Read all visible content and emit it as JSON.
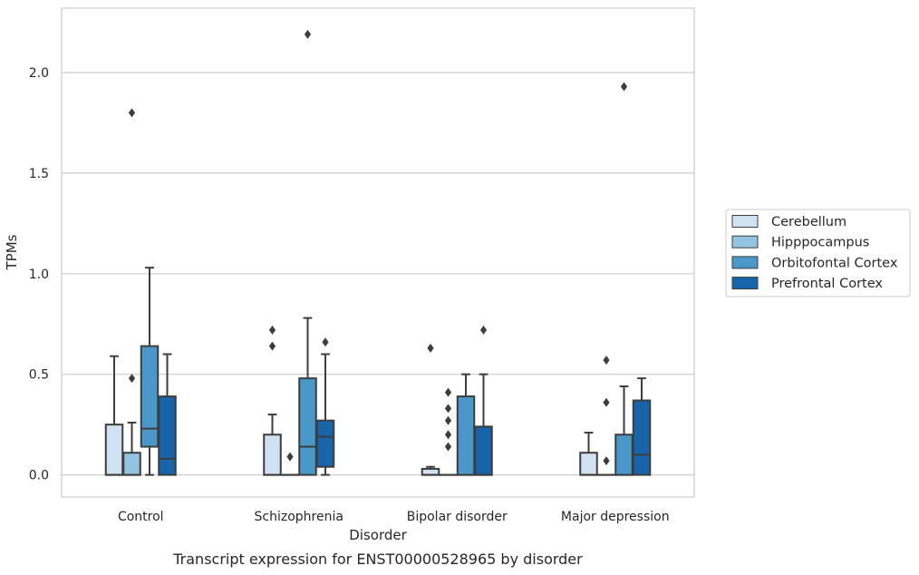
{
  "chart_data": {
    "type": "box",
    "title": "",
    "caption": "Transcript expression for ENST00000528965 by disorder",
    "xlabel": "Disorder",
    "ylabel": "TPMs",
    "ylim": [
      -0.11,
      2.32
    ],
    "yticks": [
      "0.0",
      "0.5",
      "1.0",
      "1.5",
      "2.0"
    ],
    "grid": "horizontal",
    "legend_position": "right",
    "categories": [
      "Control",
      "Schizophrenia",
      "Bipolar disorder",
      "Major depression"
    ],
    "series": [
      {
        "name": "Cerebellum",
        "color": "#d0e1f2",
        "boxes": [
          {
            "q1": 0.0,
            "median": 0.0,
            "q3": 0.25,
            "whisker_low": 0.0,
            "whisker_high": 0.59,
            "outliers": []
          },
          {
            "q1": 0.0,
            "median": 0.0,
            "q3": 0.2,
            "whisker_low": 0.0,
            "whisker_high": 0.3,
            "outliers": [
              0.64,
              0.72
            ]
          },
          {
            "q1": 0.0,
            "median": 0.0,
            "q3": 0.03,
            "whisker_low": 0.0,
            "whisker_high": 0.04,
            "outliers": [
              0.63
            ]
          },
          {
            "q1": 0.0,
            "median": 0.0,
            "q3": 0.11,
            "whisker_low": 0.0,
            "whisker_high": 0.21,
            "outliers": []
          }
        ]
      },
      {
        "name": "Hipppocampus",
        "color": "#94c4df",
        "boxes": [
          {
            "q1": 0.0,
            "median": 0.0,
            "q3": 0.11,
            "whisker_low": 0.0,
            "whisker_high": 0.26,
            "outliers": [
              0.48,
              1.8
            ]
          },
          {
            "q1": 0.0,
            "median": 0.0,
            "q3": 0.0,
            "whisker_low": 0.0,
            "whisker_high": 0.0,
            "outliers": [
              0.09
            ]
          },
          {
            "q1": 0.0,
            "median": 0.0,
            "q3": 0.0,
            "whisker_low": 0.0,
            "whisker_high": 0.0,
            "outliers": [
              0.14,
              0.2,
              0.27,
              0.33,
              0.41
            ]
          },
          {
            "q1": 0.0,
            "median": 0.0,
            "q3": 0.0,
            "whisker_low": 0.0,
            "whisker_high": 0.0,
            "outliers": [
              0.07,
              0.36,
              0.57
            ]
          }
        ]
      },
      {
        "name": "Orbitofontal Cortex",
        "color": "#4a98c9",
        "boxes": [
          {
            "q1": 0.14,
            "median": 0.23,
            "q3": 0.64,
            "whisker_low": 0.0,
            "whisker_high": 1.03,
            "outliers": []
          },
          {
            "q1": 0.0,
            "median": 0.14,
            "q3": 0.48,
            "whisker_low": 0.0,
            "whisker_high": 0.78,
            "outliers": [
              2.19
            ]
          },
          {
            "q1": 0.0,
            "median": 0.0,
            "q3": 0.39,
            "whisker_low": 0.0,
            "whisker_high": 0.5,
            "outliers": []
          },
          {
            "q1": 0.0,
            "median": 0.0,
            "q3": 0.2,
            "whisker_low": 0.0,
            "whisker_high": 0.44,
            "outliers": [
              1.93
            ]
          }
        ]
      },
      {
        "name": "Prefrontal Cortex",
        "color": "#1764ab",
        "boxes": [
          {
            "q1": 0.0,
            "median": 0.08,
            "q3": 0.39,
            "whisker_low": 0.0,
            "whisker_high": 0.6,
            "outliers": []
          },
          {
            "q1": 0.04,
            "median": 0.19,
            "q3": 0.27,
            "whisker_low": 0.0,
            "whisker_high": 0.6,
            "outliers": [
              0.66
            ]
          },
          {
            "q1": 0.0,
            "median": 0.0,
            "q3": 0.24,
            "whisker_low": 0.0,
            "whisker_high": 0.5,
            "outliers": [
              0.72
            ]
          },
          {
            "q1": 0.0,
            "median": 0.1,
            "q3": 0.37,
            "whisker_low": 0.0,
            "whisker_high": 0.48,
            "outliers": []
          }
        ]
      }
    ]
  }
}
